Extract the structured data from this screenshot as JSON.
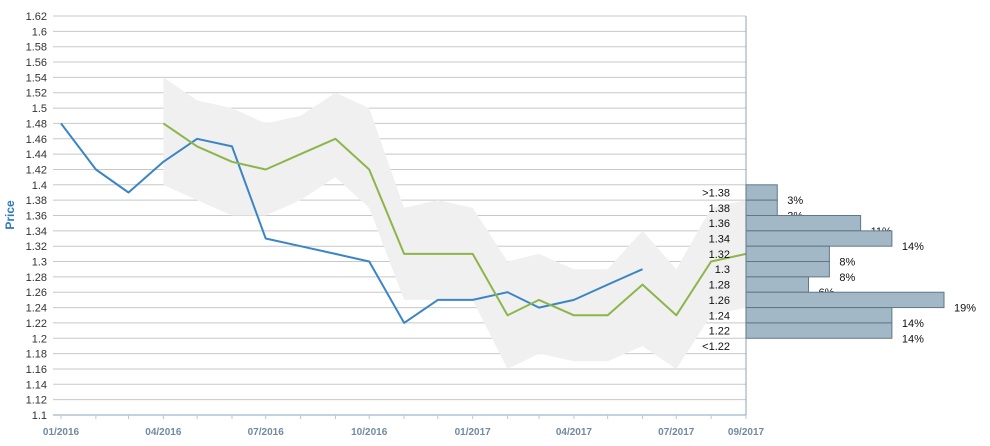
{
  "chart_data": {
    "type": "line",
    "ylabel": "Price",
    "ylim": [
      1.1,
      1.62
    ],
    "y_ticks": [
      "1.1",
      "1.12",
      "1.14",
      "1.16",
      "1.18",
      "1.2",
      "1.22",
      "1.24",
      "1.26",
      "1.28",
      "1.3",
      "1.32",
      "1.34",
      "1.36",
      "1.38",
      "1.4",
      "1.42",
      "1.44",
      "1.46",
      "1.48",
      "1.5",
      "1.52",
      "1.54",
      "1.56",
      "1.58",
      "1.6",
      "1.62"
    ],
    "x_ticks": [
      "01/2016",
      "04/2016",
      "07/2016",
      "10/2016",
      "01/2017",
      "04/2017",
      "07/2017",
      "09/2017"
    ],
    "grid": true,
    "colors": {
      "actual": "#3a85c6",
      "forecast": "#8db54a",
      "band": "#f0f0f0",
      "hist": "#a2b8c6",
      "grid": "#c8c8c8"
    },
    "series": [
      {
        "values": [
          [
            "2016-01-01",
            1.48
          ],
          [
            "2016-02-01",
            1.42
          ],
          [
            "2016-03-01",
            1.39
          ],
          [
            "2016-04-01",
            1.43
          ],
          [
            "2016-05-01",
            1.46
          ],
          [
            "2016-06-01",
            1.45
          ],
          [
            "2016-07-01",
            1.33
          ],
          [
            "2016-08-01",
            1.32
          ],
          [
            "2016-09-01",
            1.31
          ],
          [
            "2016-10-01",
            1.3
          ],
          [
            "2016-11-01",
            1.22
          ],
          [
            "2016-12-01",
            1.25
          ],
          [
            "2017-01-01",
            1.25
          ],
          [
            "2017-02-01",
            1.26
          ],
          [
            "2017-03-01",
            1.24
          ],
          [
            "2017-04-01",
            1.25
          ],
          [
            "2017-05-01",
            1.27
          ],
          [
            "2017-06-01",
            1.29
          ]
        ]
      },
      {
        "values": [
          [
            "2016-04-01",
            1.48
          ],
          [
            "2016-05-01",
            1.45
          ],
          [
            "2016-06-01",
            1.43
          ],
          [
            "2016-07-01",
            1.42
          ],
          [
            "2016-08-01",
            1.44
          ],
          [
            "2016-09-01",
            1.46
          ],
          [
            "2016-10-01",
            1.42
          ],
          [
            "2016-11-01",
            1.31
          ],
          [
            "2016-12-01",
            1.31
          ],
          [
            "2017-01-01",
            1.31
          ],
          [
            "2017-02-01",
            1.23
          ],
          [
            "2017-03-01",
            1.25
          ],
          [
            "2017-04-01",
            1.23
          ],
          [
            "2017-05-01",
            1.23
          ],
          [
            "2017-06-01",
            1.27
          ],
          [
            "2017-07-01",
            1.23
          ],
          [
            "2017-08-01",
            1.3
          ],
          [
            "2017-09-01",
            1.31
          ],
          [
            "2017-10-01",
            1.28
          ]
        ]
      }
    ],
    "band": [
      [
        "2016-04-01",
        1.4,
        1.54
      ],
      [
        "2016-05-01",
        1.38,
        1.51
      ],
      [
        "2016-06-01",
        1.36,
        1.5
      ],
      [
        "2016-07-01",
        1.36,
        1.48
      ],
      [
        "2016-08-01",
        1.38,
        1.49
      ],
      [
        "2016-09-01",
        1.41,
        1.52
      ],
      [
        "2016-10-01",
        1.37,
        1.5
      ],
      [
        "2016-11-01",
        1.25,
        1.37
      ],
      [
        "2016-12-01",
        1.25,
        1.38
      ],
      [
        "2017-01-01",
        1.25,
        1.37
      ],
      [
        "2017-02-01",
        1.16,
        1.3
      ],
      [
        "2017-03-01",
        1.18,
        1.31
      ],
      [
        "2017-04-01",
        1.17,
        1.29
      ],
      [
        "2017-05-01",
        1.17,
        1.29
      ],
      [
        "2017-06-01",
        1.19,
        1.34
      ],
      [
        "2017-07-01",
        1.16,
        1.29
      ],
      [
        "2017-08-01",
        1.23,
        1.37
      ],
      [
        "2017-09-01",
        1.24,
        1.38
      ],
      [
        "2017-10-01",
        1.21,
        1.35
      ]
    ],
    "histogram": [
      {
        "label": ">1.38",
        "pct": "3%",
        "value": 3
      },
      {
        "label": "1.38",
        "pct": "3%",
        "value": 3
      },
      {
        "label": "1.36",
        "pct": "11%",
        "value": 11
      },
      {
        "label": "1.34",
        "pct": "14%",
        "value": 14
      },
      {
        "label": "1.32",
        "pct": "8%",
        "value": 8
      },
      {
        "label": "1.3",
        "pct": "8%",
        "value": 8
      },
      {
        "label": "1.28",
        "pct": "6%",
        "value": 6
      },
      {
        "label": "1.26",
        "pct": "19%",
        "value": 19
      },
      {
        "label": "1.24",
        "pct": "14%",
        "value": 14
      },
      {
        "label": "1.22",
        "pct": "14%",
        "value": 14
      },
      {
        "label": "<1.22",
        "pct": "",
        "value": 0
      }
    ]
  }
}
